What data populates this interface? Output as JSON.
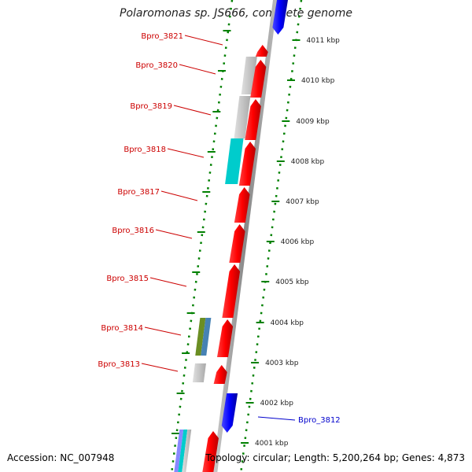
{
  "title": "Polaromonas sp. JS666, complete genome",
  "footer": {
    "accession": "Accession: NC_007948",
    "topology": "Topology: circular; Length: 5,200,264 bp; Genes: 4,873"
  },
  "scale_labels": [
    "4011 kbp",
    "4010 kbp",
    "4009 kbp",
    "4008 kbp",
    "4007 kbp",
    "4006 kbp",
    "4005 kbp",
    "4004 kbp",
    "4003 kbp",
    "4002 kbp",
    "4001 kbp"
  ],
  "gene_labels": [
    {
      "text": "Bpro_3821",
      "color": "#cc0000"
    },
    {
      "text": "Bpro_3820",
      "color": "#cc0000"
    },
    {
      "text": "Bpro_3819",
      "color": "#cc0000"
    },
    {
      "text": "Bpro_3818",
      "color": "#cc0000"
    },
    {
      "text": "Bpro_3817",
      "color": "#cc0000"
    },
    {
      "text": "Bpro_3816",
      "color": "#cc0000"
    },
    {
      "text": "Bpro_3815",
      "color": "#cc0000"
    },
    {
      "text": "Bpro_3814",
      "color": "#cc0000"
    },
    {
      "text": "Bpro_3813",
      "color": "#cc0000"
    },
    {
      "text": "Bpro_3812",
      "color": "#0000cc"
    }
  ],
  "colors": {
    "forward_gene": "#ee0000",
    "reverse_gene": "#1a1aee",
    "feature_grey": "#bbbbbb",
    "feature_cyan": "#00cccc",
    "feature_olive": "#6b8e23",
    "feature_steelblue": "#4682b4",
    "backbone": "#999999",
    "tick": "#008000"
  }
}
